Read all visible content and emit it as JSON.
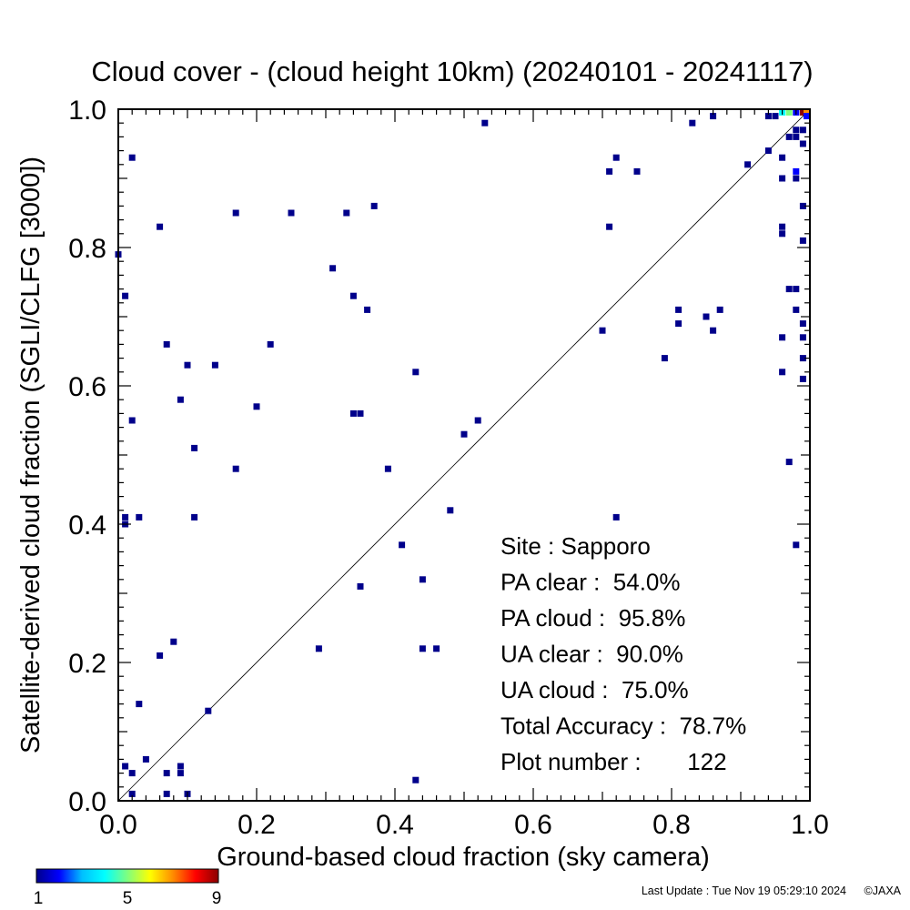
{
  "chart_data": {
    "type": "scatter",
    "title": "Cloud cover - (cloud height 10km)  (20240101 - 20241117)",
    "xlabel": "Ground-based cloud fraction (sky camera)",
    "ylabel": "Satellite-derived cloud fraction (SGLI/CLFG [3000])",
    "xlim": [
      0.0,
      1.0
    ],
    "ylim": [
      0.0,
      1.0
    ],
    "x_ticks": [
      "0.0",
      "0.2",
      "0.4",
      "0.6",
      "0.8",
      "1.0"
    ],
    "y_ticks": [
      "0.0",
      "0.2",
      "0.4",
      "0.6",
      "0.8",
      "1.0"
    ],
    "grid": false,
    "reference_line": "y = x",
    "stats": [
      {
        "label": "Site : Sapporo"
      },
      {
        "label": "PA clear :  54.0%"
      },
      {
        "label": "PA cloud :  95.8%"
      },
      {
        "label": "UA clear :  90.0%"
      },
      {
        "label": "UA cloud :  75.0%"
      },
      {
        "label": "Total Accuracy :  78.7%"
      },
      {
        "label": "Plot number :       122"
      }
    ],
    "colorbar": {
      "min_label": "1",
      "mid_label": "5",
      "max_label": "9",
      "colors": [
        "#00008b",
        "#0000ff",
        "#00bfff",
        "#00ffff",
        "#7fff7f",
        "#ffff00",
        "#ff8c00",
        "#ff0000",
        "#8b0000"
      ]
    },
    "points": [
      [
        0.0,
        0.79,
        1
      ],
      [
        0.01,
        0.73,
        1
      ],
      [
        0.01,
        0.41,
        1
      ],
      [
        0.01,
        0.4,
        1
      ],
      [
        0.02,
        0.93,
        1
      ],
      [
        0.02,
        0.55,
        1
      ],
      [
        0.03,
        0.41,
        1
      ],
      [
        0.03,
        0.14,
        1
      ],
      [
        0.01,
        0.05,
        1
      ],
      [
        0.02,
        0.04,
        1
      ],
      [
        0.02,
        0.01,
        1
      ],
      [
        0.04,
        0.06,
        1
      ],
      [
        0.06,
        0.83,
        1
      ],
      [
        0.07,
        0.66,
        1
      ],
      [
        0.06,
        0.21,
        1
      ],
      [
        0.08,
        0.23,
        1
      ],
      [
        0.07,
        0.04,
        1
      ],
      [
        0.09,
        0.05,
        1
      ],
      [
        0.09,
        0.04,
        1
      ],
      [
        0.07,
        0.01,
        1
      ],
      [
        0.1,
        0.01,
        1
      ],
      [
        0.1,
        0.63,
        1
      ],
      [
        0.09,
        0.58,
        1
      ],
      [
        0.11,
        0.51,
        1
      ],
      [
        0.11,
        0.41,
        1
      ],
      [
        0.13,
        0.13,
        1
      ],
      [
        0.14,
        0.63,
        1
      ],
      [
        0.17,
        0.85,
        1
      ],
      [
        0.17,
        0.48,
        1
      ],
      [
        0.2,
        0.57,
        1
      ],
      [
        0.22,
        0.66,
        1
      ],
      [
        0.25,
        0.85,
        1
      ],
      [
        0.29,
        0.22,
        1
      ],
      [
        0.31,
        0.77,
        1
      ],
      [
        0.33,
        0.85,
        1
      ],
      [
        0.34,
        0.73,
        1
      ],
      [
        0.34,
        0.56,
        1
      ],
      [
        0.35,
        0.56,
        1
      ],
      [
        0.36,
        0.71,
        1
      ],
      [
        0.37,
        0.86,
        1
      ],
      [
        0.35,
        0.31,
        1
      ],
      [
        0.39,
        0.48,
        1
      ],
      [
        0.41,
        0.37,
        1
      ],
      [
        0.43,
        0.62,
        1
      ],
      [
        0.44,
        0.32,
        1
      ],
      [
        0.44,
        0.22,
        1
      ],
      [
        0.46,
        0.22,
        1
      ],
      [
        0.43,
        0.03,
        1
      ],
      [
        0.48,
        0.42,
        1
      ],
      [
        0.5,
        0.53,
        1
      ],
      [
        0.52,
        0.55,
        1
      ],
      [
        0.53,
        0.98,
        1
      ],
      [
        0.7,
        0.68,
        1
      ],
      [
        0.71,
        0.91,
        1
      ],
      [
        0.72,
        0.93,
        1
      ],
      [
        0.71,
        0.83,
        1
      ],
      [
        0.75,
        0.91,
        1
      ],
      [
        0.72,
        0.41,
        1
      ],
      [
        0.79,
        0.64,
        1
      ],
      [
        0.81,
        0.71,
        1
      ],
      [
        0.81,
        0.69,
        1
      ],
      [
        0.83,
        0.98,
        1
      ],
      [
        0.85,
        0.7,
        1
      ],
      [
        0.86,
        0.68,
        1
      ],
      [
        0.87,
        0.71,
        1
      ],
      [
        0.86,
        0.99,
        1
      ],
      [
        0.91,
        0.92,
        1
      ],
      [
        0.94,
        0.99,
        1
      ],
      [
        0.95,
        0.99,
        1
      ],
      [
        0.94,
        0.94,
        1
      ],
      [
        0.96,
        0.93,
        1
      ],
      [
        0.96,
        0.9,
        1
      ],
      [
        0.96,
        0.83,
        1
      ],
      [
        0.96,
        0.82,
        1
      ],
      [
        0.96,
        0.67,
        1
      ],
      [
        0.96,
        0.62,
        1
      ],
      [
        0.97,
        0.74,
        1
      ],
      [
        0.97,
        0.49,
        1
      ],
      [
        0.98,
        0.37,
        1
      ],
      [
        0.98,
        0.74,
        1
      ],
      [
        0.98,
        0.71,
        1
      ],
      [
        0.99,
        0.86,
        1
      ],
      [
        0.99,
        0.81,
        1
      ],
      [
        0.99,
        0.69,
        1
      ],
      [
        0.99,
        0.67,
        1
      ],
      [
        0.99,
        0.64,
        1
      ],
      [
        0.99,
        0.61,
        1
      ],
      [
        0.97,
        0.96,
        1
      ],
      [
        0.98,
        0.96,
        1
      ],
      [
        0.98,
        0.97,
        1
      ],
      [
        0.99,
        0.97,
        1
      ],
      [
        0.98,
        0.91,
        2
      ],
      [
        0.98,
        0.9,
        1
      ],
      [
        0.99,
        0.95,
        1
      ],
      [
        0.96,
        1.0,
        4
      ],
      [
        0.97,
        1.0,
        5
      ],
      [
        0.98,
        1.0,
        2
      ],
      [
        0.99,
        1.0,
        9
      ],
      [
        1.0,
        1.0,
        7
      ],
      [
        1.0,
        0.99,
        2
      ]
    ]
  },
  "footer": {
    "last_update": "Last Update : Tue Nov 19 05:29:10 2024",
    "copyright": "©JAXA"
  }
}
